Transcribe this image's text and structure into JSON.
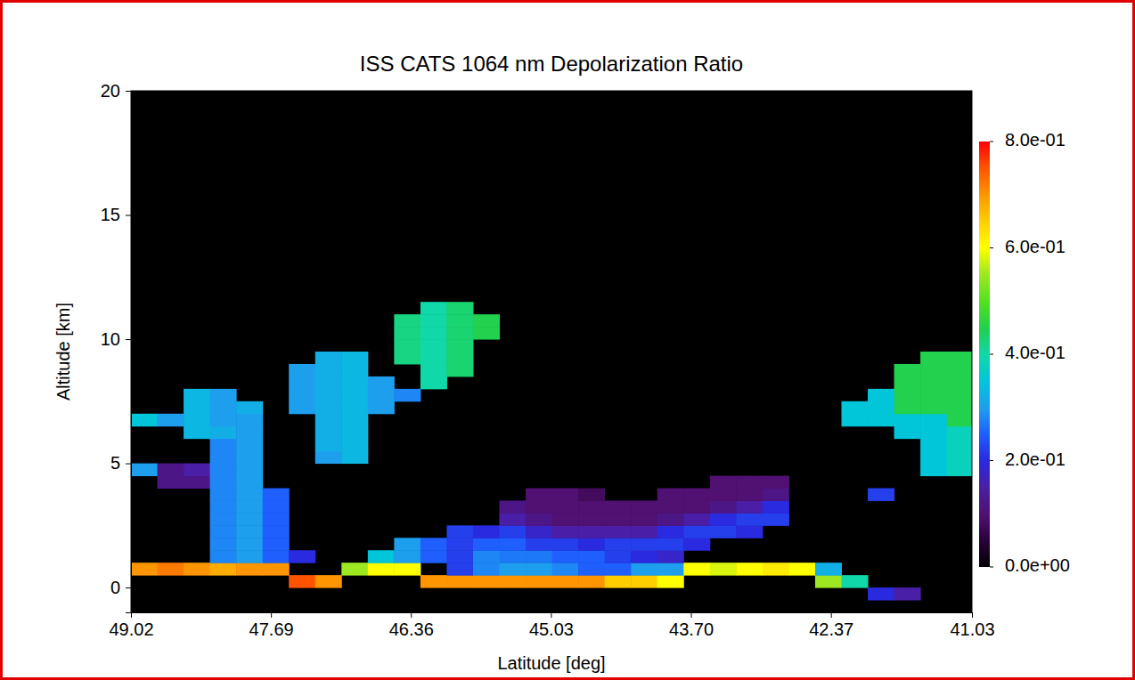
{
  "chart_data": {
    "type": "heatmap",
    "title": "ISS CATS 1064 nm Depolarization Ratio",
    "xlabel": "Latitude [deg]",
    "ylabel": "Altitude [km]",
    "xlim": [
      49.02,
      41.03
    ],
    "xticks": [
      49.02,
      47.69,
      46.36,
      45.03,
      {
        "value": 43.7,
        "label": "43.70"
      },
      42.37,
      41.03
    ],
    "ylim": [
      -1,
      20
    ],
    "yticks": [
      0,
      5,
      10,
      15,
      20
    ],
    "x": [
      48.895,
      48.645,
      48.395,
      48.145,
      47.895,
      47.645,
      47.395,
      47.145,
      46.895,
      46.645,
      46.395,
      46.145,
      45.895,
      45.645,
      45.395,
      45.145,
      44.895,
      44.645,
      44.395,
      44.145,
      43.895,
      43.645,
      43.395,
      43.145,
      42.895,
      42.645,
      42.395,
      42.145,
      41.895,
      41.645,
      41.395,
      41.145
    ],
    "y": [
      -0.75,
      -0.25,
      0.25,
      0.75,
      1.25,
      1.75,
      2.25,
      2.75,
      3.25,
      3.75,
      4.25,
      4.75,
      5.25,
      5.75,
      6.25,
      6.75,
      7.25,
      7.75,
      8.25,
      8.75,
      9.25,
      9.75,
      10.25,
      10.75,
      11.25,
      11.75
    ],
    "z": [
      [
        null,
        null,
        null,
        null,
        null,
        null,
        null,
        null,
        null,
        null,
        null,
        null,
        null,
        null,
        null,
        null,
        null,
        null,
        null,
        null,
        null,
        null,
        null,
        null,
        null,
        null,
        null,
        null,
        null,
        null,
        null,
        null
      ],
      [
        null,
        null,
        null,
        null,
        null,
        null,
        null,
        null,
        null,
        null,
        null,
        null,
        null,
        null,
        null,
        null,
        null,
        null,
        null,
        null,
        null,
        null,
        null,
        null,
        null,
        null,
        null,
        null,
        0.2,
        0.15,
        null,
        null
      ],
      [
        null,
        null,
        null,
        null,
        null,
        null,
        0.75,
        0.7,
        null,
        null,
        null,
        0.7,
        0.7,
        0.7,
        0.7,
        0.7,
        0.7,
        0.7,
        0.65,
        0.65,
        0.6,
        null,
        null,
        null,
        null,
        null,
        0.55,
        0.4,
        null,
        null,
        null,
        null
      ],
      [
        0.7,
        0.72,
        0.7,
        0.68,
        0.7,
        0.7,
        null,
        null,
        0.55,
        0.6,
        0.6,
        null,
        0.22,
        0.28,
        0.3,
        0.3,
        0.28,
        0.25,
        0.25,
        0.3,
        0.3,
        0.6,
        0.58,
        0.6,
        0.62,
        0.6,
        0.32,
        null,
        null,
        null,
        null,
        null
      ],
      [
        null,
        null,
        null,
        0.28,
        0.3,
        0.25,
        0.2,
        null,
        null,
        0.35,
        0.3,
        0.25,
        0.22,
        0.28,
        0.27,
        0.27,
        0.25,
        0.25,
        0.22,
        0.2,
        0.18,
        null,
        null,
        null,
        null,
        null,
        null,
        null,
        null,
        null,
        null,
        null
      ],
      [
        null,
        null,
        null,
        0.28,
        0.3,
        0.25,
        null,
        null,
        null,
        null,
        0.3,
        0.25,
        0.22,
        0.25,
        0.25,
        0.22,
        0.22,
        0.2,
        0.22,
        0.22,
        0.22,
        0.2,
        null,
        null,
        null,
        null,
        null,
        null,
        null,
        null,
        null,
        null
      ],
      [
        null,
        null,
        null,
        0.28,
        0.3,
        0.25,
        null,
        null,
        null,
        null,
        null,
        null,
        0.22,
        0.2,
        0.22,
        0.18,
        0.15,
        0.15,
        0.15,
        0.15,
        0.2,
        0.22,
        0.22,
        0.2,
        null,
        null,
        null,
        null,
        null,
        null,
        null,
        null
      ],
      [
        null,
        null,
        null,
        0.28,
        0.3,
        0.25,
        null,
        null,
        null,
        null,
        null,
        null,
        null,
        null,
        0.15,
        0.12,
        0.1,
        0.1,
        0.1,
        0.1,
        0.12,
        0.15,
        0.2,
        0.22,
        0.22,
        null,
        null,
        null,
        null,
        null,
        null,
        null
      ],
      [
        null,
        null,
        null,
        0.28,
        0.3,
        0.25,
        null,
        null,
        null,
        null,
        null,
        null,
        null,
        null,
        0.12,
        0.1,
        0.1,
        0.1,
        0.1,
        0.1,
        0.1,
        0.1,
        0.12,
        0.15,
        0.2,
        null,
        null,
        null,
        null,
        null,
        null,
        null
      ],
      [
        null,
        null,
        null,
        0.28,
        0.3,
        0.25,
        null,
        null,
        null,
        null,
        null,
        null,
        null,
        null,
        null,
        0.1,
        0.1,
        0.08,
        null,
        null,
        0.1,
        0.1,
        0.1,
        0.1,
        0.12,
        null,
        null,
        null,
        0.22,
        null,
        null,
        null
      ],
      [
        null,
        0.12,
        0.12,
        0.28,
        0.3,
        null,
        null,
        null,
        null,
        null,
        null,
        null,
        null,
        null,
        null,
        null,
        null,
        null,
        null,
        null,
        null,
        null,
        0.1,
        0.1,
        0.1,
        null,
        null,
        null,
        null,
        null,
        null,
        null
      ],
      [
        0.3,
        0.12,
        0.15,
        0.28,
        0.3,
        null,
        null,
        null,
        null,
        null,
        null,
        null,
        null,
        null,
        null,
        null,
        null,
        null,
        null,
        null,
        null,
        null,
        null,
        null,
        null,
        null,
        null,
        null,
        null,
        null,
        0.35,
        0.38
      ],
      [
        null,
        null,
        null,
        0.28,
        0.3,
        null,
        null,
        0.3,
        0.33,
        null,
        null,
        null,
        null,
        null,
        null,
        null,
        null,
        null,
        null,
        null,
        null,
        null,
        null,
        null,
        null,
        null,
        null,
        null,
        null,
        null,
        0.35,
        0.38
      ],
      [
        null,
        null,
        null,
        0.28,
        0.3,
        null,
        null,
        0.32,
        0.33,
        null,
        null,
        null,
        null,
        null,
        null,
        null,
        null,
        null,
        null,
        null,
        null,
        null,
        null,
        null,
        null,
        null,
        null,
        null,
        null,
        null,
        0.35,
        0.38
      ],
      [
        null,
        null,
        0.33,
        0.32,
        0.3,
        null,
        null,
        0.32,
        0.33,
        null,
        null,
        null,
        null,
        null,
        null,
        null,
        null,
        null,
        null,
        null,
        null,
        null,
        null,
        null,
        null,
        null,
        null,
        null,
        null,
        0.35,
        0.35,
        0.38
      ],
      [
        0.35,
        0.3,
        0.33,
        0.3,
        0.3,
        null,
        null,
        0.32,
        0.33,
        null,
        null,
        null,
        null,
        null,
        null,
        null,
        null,
        null,
        null,
        null,
        null,
        null,
        null,
        null,
        null,
        null,
        null,
        0.35,
        0.35,
        0.35,
        0.35,
        0.45
      ],
      [
        null,
        null,
        0.33,
        0.3,
        0.32,
        null,
        0.3,
        0.32,
        0.33,
        0.3,
        null,
        null,
        null,
        null,
        null,
        null,
        null,
        null,
        null,
        null,
        null,
        null,
        null,
        null,
        null,
        null,
        null,
        0.35,
        0.35,
        0.45,
        0.45,
        0.45
      ],
      [
        null,
        null,
        0.33,
        0.3,
        null,
        null,
        0.3,
        0.32,
        0.33,
        0.3,
        0.28,
        null,
        null,
        null,
        null,
        null,
        null,
        null,
        null,
        null,
        null,
        null,
        null,
        null,
        null,
        null,
        null,
        null,
        0.35,
        0.45,
        0.45,
        0.45
      ],
      [
        null,
        null,
        null,
        null,
        null,
        null,
        0.3,
        0.32,
        0.33,
        0.3,
        null,
        0.4,
        null,
        null,
        null,
        null,
        null,
        null,
        null,
        null,
        null,
        null,
        null,
        null,
        null,
        null,
        null,
        null,
        null,
        0.45,
        0.45,
        0.45
      ],
      [
        null,
        null,
        null,
        null,
        null,
        null,
        0.3,
        0.32,
        0.33,
        null,
        null,
        0.4,
        0.43,
        null,
        null,
        null,
        null,
        null,
        null,
        null,
        null,
        null,
        null,
        null,
        null,
        null,
        null,
        null,
        null,
        0.45,
        0.45,
        0.45
      ],
      [
        null,
        null,
        null,
        null,
        null,
        null,
        null,
        0.32,
        0.33,
        null,
        0.42,
        0.4,
        0.43,
        null,
        null,
        null,
        null,
        null,
        null,
        null,
        null,
        null,
        null,
        null,
        null,
        null,
        null,
        null,
        null,
        null,
        0.45,
        0.45
      ],
      [
        null,
        null,
        null,
        null,
        null,
        null,
        null,
        null,
        null,
        null,
        0.42,
        0.4,
        0.43,
        null,
        null,
        null,
        null,
        null,
        null,
        null,
        null,
        null,
        null,
        null,
        null,
        null,
        null,
        null,
        null,
        null,
        null,
        null
      ],
      [
        null,
        null,
        null,
        null,
        null,
        null,
        null,
        null,
        null,
        null,
        0.42,
        0.4,
        0.43,
        0.45,
        null,
        null,
        null,
        null,
        null,
        null,
        null,
        null,
        null,
        null,
        null,
        null,
        null,
        null,
        null,
        null,
        null,
        null
      ],
      [
        null,
        null,
        null,
        null,
        null,
        null,
        null,
        null,
        null,
        null,
        0.42,
        0.4,
        0.43,
        0.45,
        null,
        null,
        null,
        null,
        null,
        null,
        null,
        null,
        null,
        null,
        null,
        null,
        null,
        null,
        null,
        null,
        null,
        null
      ],
      [
        null,
        null,
        null,
        null,
        null,
        null,
        null,
        null,
        null,
        null,
        null,
        0.4,
        0.43,
        null,
        null,
        null,
        null,
        null,
        null,
        null,
        null,
        null,
        null,
        null,
        null,
        null,
        null,
        null,
        null,
        null,
        null,
        null
      ],
      [
        null,
        null,
        null,
        null,
        null,
        null,
        null,
        null,
        null,
        null,
        null,
        null,
        null,
        null,
        null,
        null,
        null,
        null,
        null,
        null,
        null,
        null,
        null,
        null,
        null,
        null,
        null,
        null,
        null,
        null,
        null,
        null
      ]
    ],
    "colorbar": {
      "range": [
        0,
        0.8
      ],
      "ticks": [
        {
          "value": 0,
          "label": "0.0e+00"
        },
        {
          "value": 0.2,
          "label": "2.0e-01"
        },
        {
          "value": 0.4,
          "label": "4.0e-01"
        },
        {
          "value": 0.6,
          "label": "6.0e-01"
        },
        {
          "value": 0.8,
          "label": "8.0e-01"
        }
      ]
    }
  }
}
